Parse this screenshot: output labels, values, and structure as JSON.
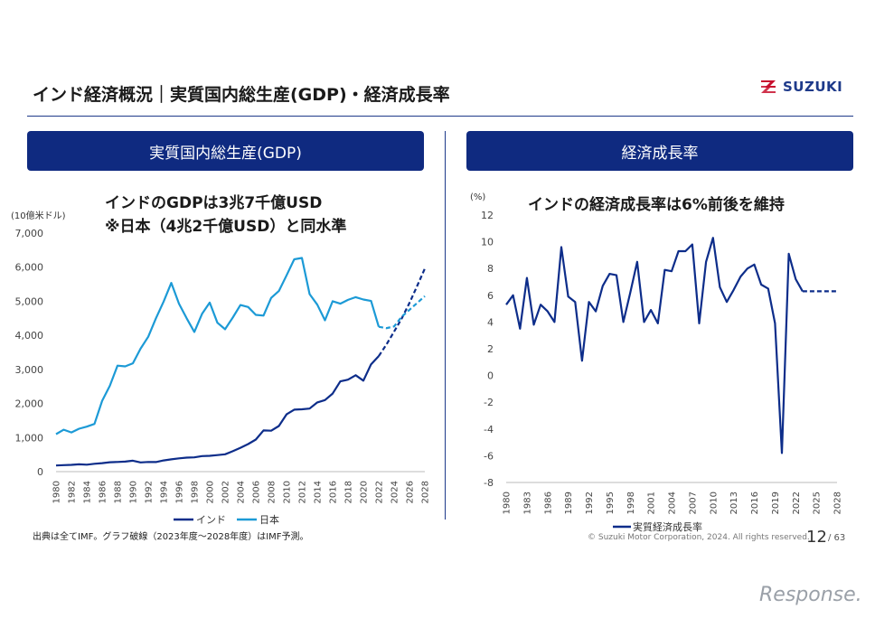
{
  "header": {
    "title": "インド経済概況｜実質国内総生産(GDP)・経済成長率",
    "logo_text": "SUZUKI"
  },
  "left_panel": {
    "banner": "実質国内総生産(GDP)",
    "headline_1": "インドのGDPは3兆7千億USD",
    "headline_2": "※日本（4兆2千億USD）と同水準",
    "unit": "(10億米ドル)"
  },
  "right_panel": {
    "banner": "経済成長率",
    "headline": "インドの経済成長率は6%前後を維持",
    "unit": "(%)"
  },
  "footer": {
    "source": "出典は全てIMF。グラフ破線（2023年度～2028年度）はIMF予測。",
    "copyright": "© Suzuki Motor Corporation, 2024. All rights reserved.",
    "page": "12",
    "page_total": "/ 63",
    "watermark": "Response."
  },
  "colors": {
    "brand": "#0f2a80",
    "india": "#0d2d8a",
    "japan": "#1c9ad6"
  },
  "chart_data": [
    {
      "type": "line",
      "xlim": [
        1980,
        2028
      ],
      "ylim": [
        0,
        7000
      ],
      "yticks": [
        0,
        1000,
        2000,
        3000,
        4000,
        5000,
        6000,
        7000
      ],
      "ytick_labels": [
        "0",
        "1,000",
        "2,000",
        "3,000",
        "4,000",
        "5,000",
        "6,000",
        "7,000"
      ],
      "xticks": [
        1980,
        1982,
        1984,
        1986,
        1988,
        1990,
        1992,
        1994,
        1996,
        1998,
        2000,
        2002,
        2004,
        2006,
        2008,
        2010,
        2012,
        2014,
        2016,
        2018,
        2020,
        2022,
        2024,
        2026,
        2028
      ],
      "forecast_from": 2022,
      "legend_position": "bottom",
      "series": [
        {
          "name": "インド",
          "color": "#0d2d8a",
          "x": [
            1980,
            1981,
            1982,
            1983,
            1984,
            1985,
            1986,
            1987,
            1988,
            1989,
            1990,
            1991,
            1992,
            1993,
            1994,
            1995,
            1996,
            1997,
            1998,
            1999,
            2000,
            2001,
            2002,
            2003,
            2004,
            2005,
            2006,
            2007,
            2008,
            2009,
            2010,
            2011,
            2012,
            2013,
            2014,
            2015,
            2016,
            2017,
            2018,
            2019,
            2020,
            2021,
            2022,
            2023,
            2024,
            2025,
            2026,
            2027,
            2028
          ],
          "values": [
            180,
            190,
            200,
            215,
            205,
            230,
            250,
            275,
            285,
            295,
            320,
            270,
            285,
            280,
            330,
            360,
            390,
            410,
            420,
            455,
            465,
            485,
            510,
            600,
            700,
            810,
            940,
            1210,
            1200,
            1340,
            1680,
            1820,
            1830,
            1850,
            2030,
            2100,
            2290,
            2650,
            2700,
            2830,
            2670,
            3150,
            3390,
            3730,
            4110,
            4500,
            4950,
            5450,
            5960
          ]
        },
        {
          "name": "日本",
          "color": "#1c9ad6",
          "x": [
            1980,
            1981,
            1982,
            1983,
            1984,
            1985,
            1986,
            1987,
            1988,
            1989,
            1990,
            1991,
            1992,
            1993,
            1994,
            1995,
            1996,
            1997,
            1998,
            1999,
            2000,
            2001,
            2002,
            2003,
            2004,
            2005,
            2006,
            2007,
            2008,
            2009,
            2010,
            2011,
            2012,
            2013,
            2014,
            2015,
            2016,
            2017,
            2018,
            2019,
            2020,
            2021,
            2022,
            2023,
            2024,
            2025,
            2026,
            2027,
            2028
          ],
          "values": [
            1100,
            1230,
            1150,
            1260,
            1320,
            1400,
            2080,
            2520,
            3110,
            3090,
            3180,
            3610,
            3960,
            4500,
            4990,
            5540,
            4930,
            4500,
            4100,
            4630,
            4960,
            4370,
            4180,
            4520,
            4890,
            4830,
            4600,
            4580,
            5100,
            5300,
            5760,
            6230,
            6270,
            5210,
            4900,
            4440,
            5000,
            4930,
            5040,
            5120,
            5050,
            5010,
            4250,
            4210,
            4260,
            4550,
            4750,
            4950,
            5150
          ]
        }
      ]
    },
    {
      "type": "line",
      "xlim": [
        1980,
        2028
      ],
      "ylim": [
        -8,
        12
      ],
      "yticks": [
        -8,
        -6,
        -4,
        -2,
        0,
        2,
        4,
        6,
        8,
        10,
        12
      ],
      "xticks": [
        1980,
        1983,
        1986,
        1989,
        1992,
        1995,
        1998,
        2001,
        2004,
        2007,
        2010,
        2013,
        2016,
        2019,
        2022,
        2025,
        2028
      ],
      "forecast_from": 2023,
      "legend_position": "bottom",
      "series": [
        {
          "name": "実質経済成長率",
          "color": "#0d2d8a",
          "x": [
            1980,
            1981,
            1982,
            1983,
            1984,
            1985,
            1986,
            1987,
            1988,
            1989,
            1990,
            1991,
            1992,
            1993,
            1994,
            1995,
            1996,
            1997,
            1998,
            1999,
            2000,
            2001,
            2002,
            2003,
            2004,
            2005,
            2006,
            2007,
            2008,
            2009,
            2010,
            2011,
            2012,
            2013,
            2014,
            2015,
            2016,
            2017,
            2018,
            2019,
            2020,
            2021,
            2022,
            2023,
            2024,
            2025,
            2026,
            2027,
            2028
          ],
          "values": [
            5.3,
            6.0,
            3.5,
            7.3,
            3.8,
            5.3,
            4.8,
            4.0,
            9.6,
            5.9,
            5.5,
            1.1,
            5.5,
            4.8,
            6.7,
            7.6,
            7.5,
            4.0,
            6.2,
            8.5,
            4.0,
            4.9,
            3.9,
            7.9,
            7.8,
            9.3,
            9.3,
            9.8,
            3.9,
            8.5,
            10.3,
            6.6,
            5.5,
            6.4,
            7.4,
            8.0,
            8.3,
            6.8,
            6.5,
            3.9,
            -5.8,
            9.1,
            7.2,
            6.3,
            6.3,
            6.3,
            6.3,
            6.3,
            6.3
          ]
        }
      ]
    }
  ]
}
